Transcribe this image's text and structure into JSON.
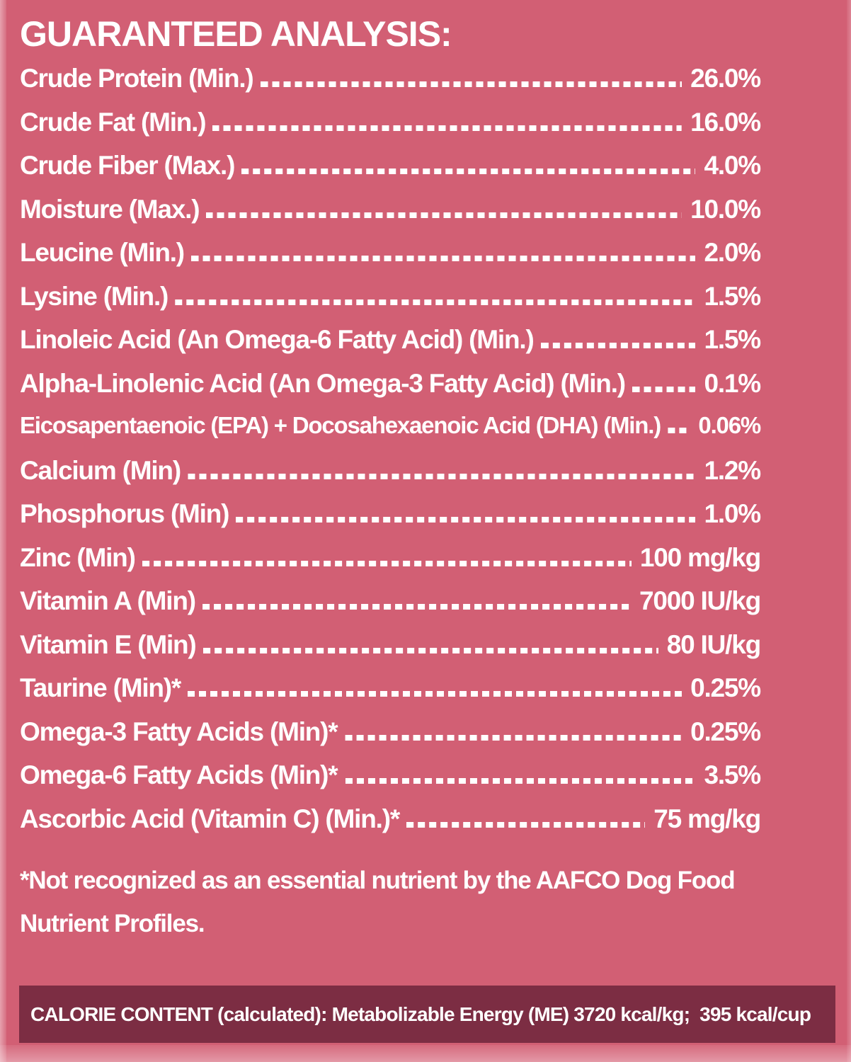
{
  "title": "GUARANTEED ANALYSIS:",
  "rows": [
    {
      "label": "Crude Protein (Min.)",
      "value": "26.0%"
    },
    {
      "label": "Crude Fat (Min.)",
      "value": "16.0%"
    },
    {
      "label": "Crude Fiber (Max.)",
      "value": "4.0%"
    },
    {
      "label": "Moisture (Max.)",
      "value": "10.0%"
    },
    {
      "label": "Leucine (Min.)",
      "value": "2.0%"
    },
    {
      "label": "Lysine (Min.)",
      "value": "1.5%"
    },
    {
      "label": "Linoleic Acid (An Omega-6 Fatty Acid) (Min.)",
      "value": "1.5%"
    },
    {
      "label": "Alpha-Linolenic Acid (An Omega-3 Fatty Acid) (Min.)",
      "value": "0.1%"
    },
    {
      "label": "Eicosapentaenoic (EPA) + Docosahexaenoic Acid (DHA) (Min.)",
      "value": "0.06%"
    },
    {
      "label": "Calcium (Min)",
      "value": "1.2%"
    },
    {
      "label": "Phosphorus (Min)",
      "value": "1.0%"
    },
    {
      "label": "Zinc (Min)",
      "value": "100 mg/kg"
    },
    {
      "label": "Vitamin A (Min)",
      "value": "7000 IU/kg"
    },
    {
      "label": "Vitamin E (Min)",
      "value": "80 IU/kg"
    },
    {
      "label": "Taurine (Min)*",
      "value": "0.25%"
    },
    {
      "label": "Omega-3 Fatty Acids (Min)*",
      "value": "0.25%"
    },
    {
      "label": "Omega-6 Fatty Acids (Min)*",
      "value": "3.5%"
    },
    {
      "label": "Ascorbic Acid (Vitamin C) (Min.)*",
      "value": "75 mg/kg"
    }
  ],
  "footnote_lines": [
    "*Not recognized as an essential nutrient by the AAFCO Dog Food",
    "Nutrient Profiles."
  ],
  "calorie_bar": {
    "text": "CALORIE CONTENT (calculated): Metabolizable Energy (ME) 3720 kcal/kg;  395 kcal/cup"
  },
  "colors": {
    "background": "#d25f74",
    "edge_highlight": "#e8909f",
    "calorie_bar_background": "#7c2d43",
    "text": "#ffffff"
  }
}
